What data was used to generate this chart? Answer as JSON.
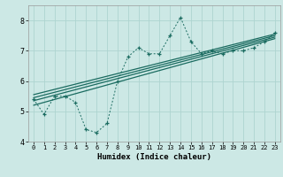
{
  "xlabel": "Humidex (Indice chaleur)",
  "ylabel": "",
  "bg_color": "#cce8e5",
  "line_color": "#1a6b60",
  "grid_color": "#aed4d0",
  "x_data": [
    0,
    1,
    2,
    3,
    4,
    5,
    6,
    7,
    8,
    9,
    10,
    11,
    12,
    13,
    14,
    15,
    16,
    17,
    18,
    19,
    20,
    21,
    22,
    23
  ],
  "y_main": [
    5.4,
    4.9,
    5.5,
    5.5,
    5.3,
    4.4,
    4.3,
    4.6,
    6.0,
    6.8,
    7.1,
    6.9,
    6.9,
    7.5,
    8.1,
    7.3,
    6.9,
    7.0,
    6.9,
    7.0,
    7.0,
    7.1,
    7.3,
    7.6
  ],
  "reg_lines": [
    {
      "x0": 0.0,
      "y0": 5.55,
      "x1": 23.0,
      "y1": 7.55
    },
    {
      "x0": 0.0,
      "y0": 5.45,
      "x1": 23.0,
      "y1": 7.5
    },
    {
      "x0": 0.0,
      "y0": 5.35,
      "x1": 23.0,
      "y1": 7.45
    },
    {
      "x0": 0.0,
      "y0": 5.2,
      "x1": 23.0,
      "y1": 7.4
    }
  ],
  "ylim": [
    4.0,
    8.5
  ],
  "xlim": [
    -0.5,
    23.5
  ],
  "yticks": [
    4,
    5,
    6,
    7,
    8
  ],
  "xticks": [
    0,
    1,
    2,
    3,
    4,
    5,
    6,
    7,
    8,
    9,
    10,
    11,
    12,
    13,
    14,
    15,
    16,
    17,
    18,
    19,
    20,
    21,
    22,
    23
  ]
}
